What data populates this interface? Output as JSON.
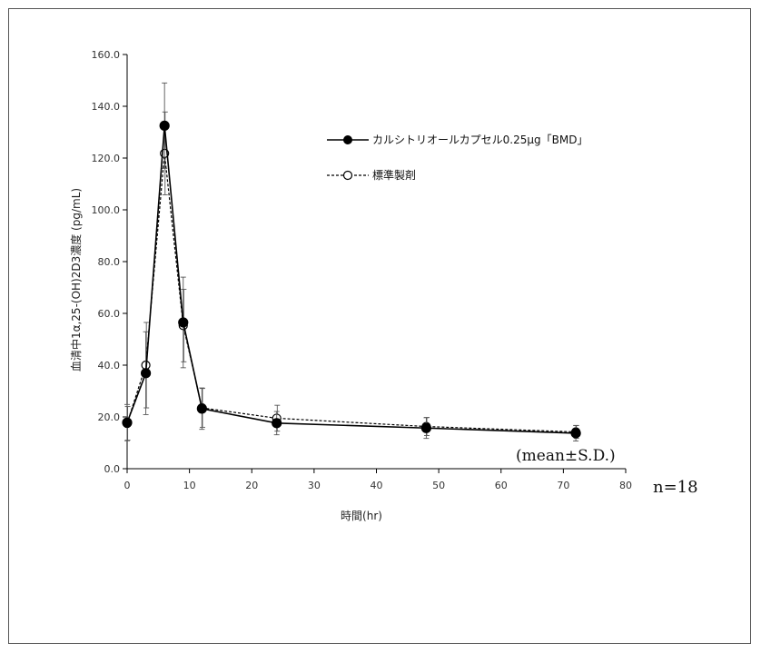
{
  "chart_data": {
    "type": "line",
    "title": "",
    "xlabel": "時間(hr)",
    "ylabel": "血清中1α,25-(OH)2D3濃度 (pg/mL)",
    "xlim": [
      0,
      80
    ],
    "ylim": [
      0,
      160
    ],
    "x_ticks": [
      "0",
      "10",
      "20",
      "30",
      "40",
      "50",
      "60",
      "70",
      "80"
    ],
    "y_ticks": [
      "0.0",
      "20.0",
      "40.0",
      "60.0",
      "80.0",
      "100.0",
      "120.0",
      "140.0",
      "160.0"
    ],
    "grid": false,
    "legend_position": "top-right",
    "annotations": {
      "stat_note": "(mean±S.D.)",
      "n_note": "n=18"
    },
    "series": [
      {
        "name": "カルシトリオールカプセル0.25μg「BMD」",
        "marker": "filled-circle",
        "line": "solid",
        "color": "#000000",
        "x": [
          0,
          3,
          6,
          9,
          12,
          24,
          48,
          72
        ],
        "y": [
          17.8,
          36.9,
          132.5,
          56.5,
          23.2,
          17.6,
          15.7,
          13.7
        ],
        "sd": [
          7.0,
          16.0,
          16.5,
          17.5,
          8.0,
          4.5,
          4.0,
          3.0
        ]
      },
      {
        "name": "標準製剤",
        "marker": "open-circle",
        "line": "dashed",
        "color": "#000000",
        "x": [
          0,
          3,
          6,
          9,
          12,
          24,
          48,
          72
        ],
        "y": [
          17.5,
          40.0,
          121.8,
          55.3,
          23.5,
          19.5,
          16.3,
          14.2
        ],
        "sd": [
          6.5,
          16.5,
          16.0,
          14.0,
          7.5,
          5.0,
          3.5,
          2.5
        ]
      }
    ]
  }
}
